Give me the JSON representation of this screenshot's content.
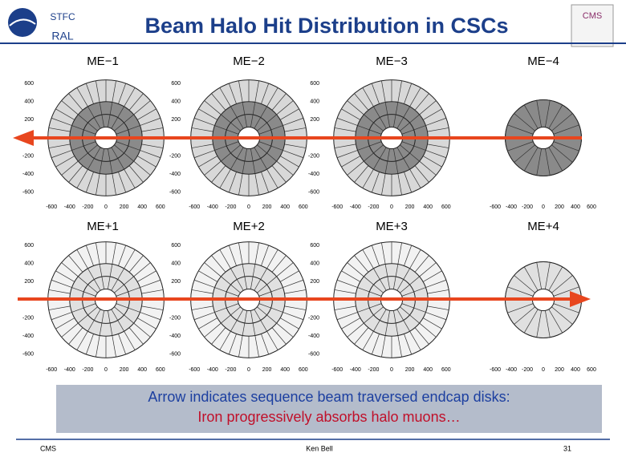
{
  "header": {
    "logo_top": "STFC",
    "logo_bottom": "RAL",
    "title": "Beam Halo Hit Distribution in CSCs",
    "cms_logo": "CMS"
  },
  "axis": {
    "x_ticks": [
      -600,
      -400,
      -200,
      0,
      200,
      400,
      600
    ],
    "y_ticks": [
      600,
      400,
      200,
      -200,
      -400,
      -600
    ]
  },
  "panels": [
    {
      "label": "ME−1"
    },
    {
      "label": "ME−2"
    },
    {
      "label": "ME−3"
    },
    {
      "label": "ME−4"
    },
    {
      "label": "ME+1"
    },
    {
      "label": "ME+2"
    },
    {
      "label": "ME+3"
    },
    {
      "label": "ME+4"
    }
  ],
  "caption": {
    "line1": "Arrow indicates sequence beam traversed endcap disks:",
    "line2": "Iron progressively absorbs halo muons…"
  },
  "footer": {
    "left": "CMS",
    "center": "Ken Bell",
    "page": "31"
  }
}
